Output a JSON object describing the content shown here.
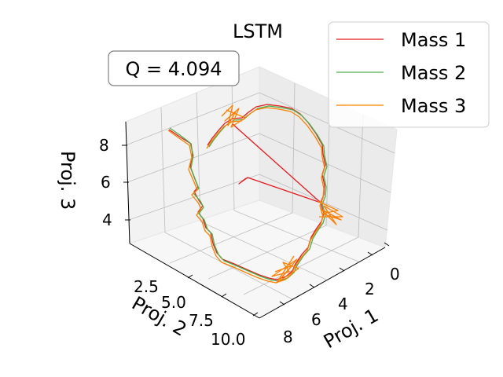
{
  "chart_data": {
    "type": "line3d",
    "title": "LSTM",
    "annotation": "Q = 4.094",
    "xlabel": "Proj. 1",
    "ylabel": "Proj. 2",
    "zlabel": "Proj. 3",
    "x_ticks": [
      "0",
      "2",
      "4",
      "6",
      "8"
    ],
    "y_ticks": [
      "2.5",
      "5.0",
      "7.5",
      "10.0"
    ],
    "z_ticks": [
      "4",
      "6",
      "8"
    ],
    "grid": true,
    "legend_position": "top-right",
    "series": [
      {
        "name": "Mass 1",
        "color": "#e41a1c"
      },
      {
        "name": "Mass 2",
        "color": "#4daf4a"
      },
      {
        "name": "Mass 3",
        "color": "#ff7f00"
      }
    ]
  }
}
